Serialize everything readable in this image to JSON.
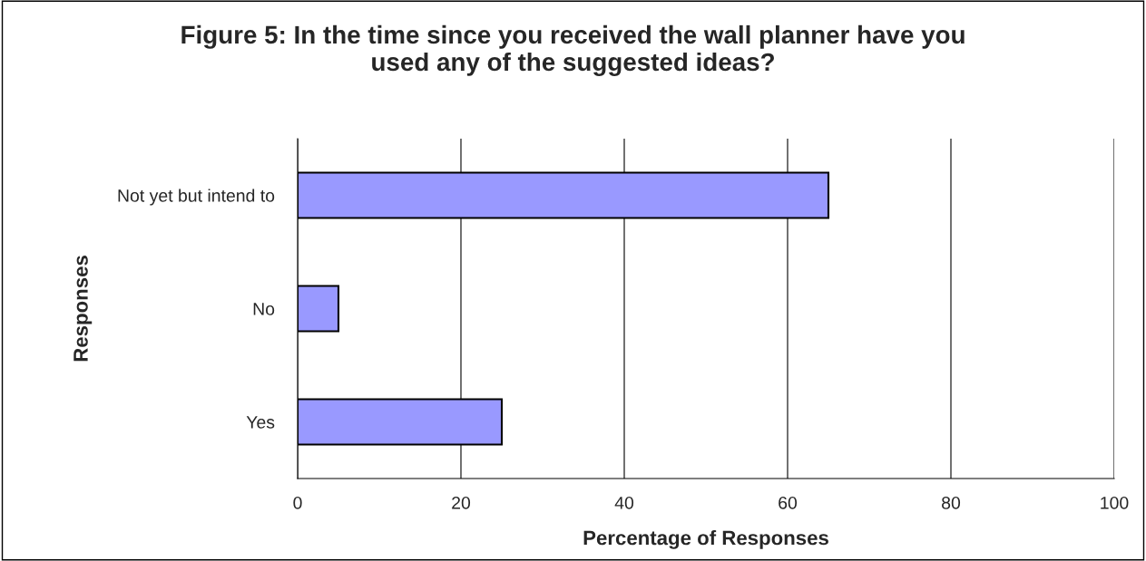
{
  "chart_data": {
    "type": "bar",
    "orientation": "horizontal",
    "title": "Figure 5: In the time since you received the wall planner have you\nused any of the suggested ideas?",
    "xlabel": "Percentage of Responses",
    "ylabel": "Responses",
    "categories": [
      "Not yet but intend to",
      "No",
      "Yes"
    ],
    "values": [
      65,
      5,
      25
    ],
    "color": "#9999ff",
    "xlim": [
      0,
      100
    ],
    "xticks": [
      0,
      20,
      40,
      60,
      80,
      100
    ],
    "grid": "x",
    "legend": false
  }
}
